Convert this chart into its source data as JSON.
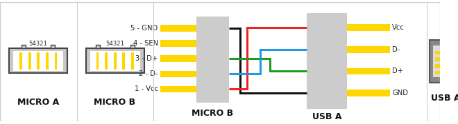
{
  "bg_color": "#ffffff",
  "border_color": "#cccccc",
  "divider_color": "#cccccc",
  "pin_color": "#FFD700",
  "connector_fill": "#c8c8c8",
  "connector_edge": "#444444",
  "wire_colors": {
    "black": "#111111",
    "red": "#ee2222",
    "green": "#229922",
    "blue": "#2299dd"
  },
  "micro_b_pins": [
    "5 - GND",
    "4 - SEN",
    "3 - D+",
    "2 - D-",
    "1 - Vcc"
  ],
  "usb_a_pins": [
    "Vcc",
    "D-",
    "D+",
    "GND"
  ],
  "micro_b_label": "MICRO B",
  "usb_a_label": "USB A",
  "micro_a_label": "MICRO A",
  "micro_b_small_label": "MICRO B",
  "title_54321": "54321",
  "font_size_pin": 7.2,
  "font_size_label": 9.0,
  "font_size_num": 6.5,
  "wire_lw": 2.2
}
